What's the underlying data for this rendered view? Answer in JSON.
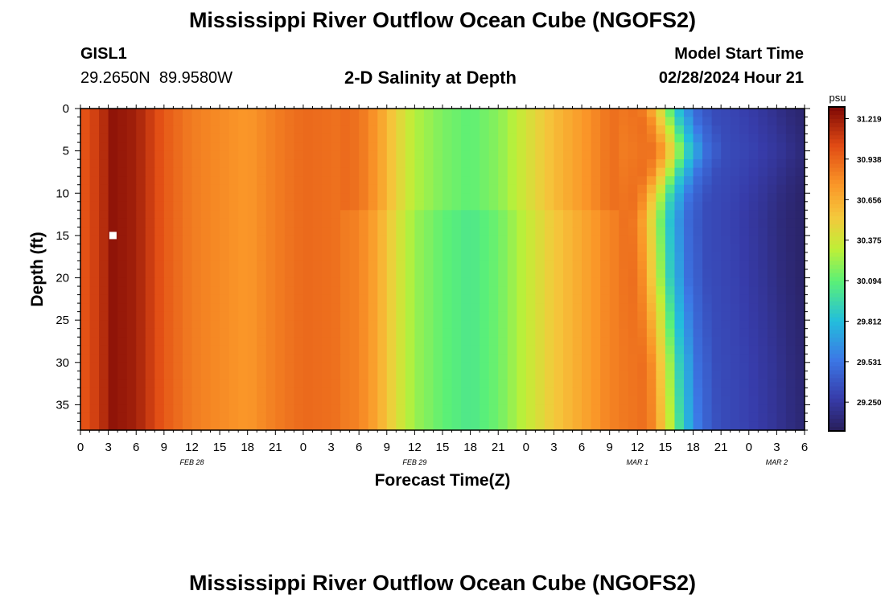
{
  "page": {
    "title": "Mississippi River Outflow Ocean Cube (NGOFS2)",
    "footer_title": "Mississippi River Outflow Ocean Cube (NGOFS2)"
  },
  "station": {
    "id": "GISL1",
    "coords": "29.2650N  89.9580W"
  },
  "model": {
    "start_label": "Model Start Time",
    "start_value": "02/28/2024 Hour 21"
  },
  "chart_data": {
    "type": "heatmap",
    "title": "2-D Salinity at Depth",
    "xlabel": "Forecast Time(Z)",
    "ylabel": "Depth (ft)",
    "x_tick_labels": [
      "0",
      "3",
      "6",
      "9",
      "12",
      "15",
      "18",
      "21",
      "0",
      "3",
      "6",
      "9",
      "12",
      "15",
      "18",
      "21",
      "0",
      "3",
      "6",
      "9",
      "12",
      "15",
      "18",
      "21",
      "0",
      "3",
      "6"
    ],
    "x_range_hours": [
      0,
      78
    ],
    "day_labels": [
      {
        "label": "FEB 28",
        "hour": 12
      },
      {
        "label": "FEB 29",
        "hour": 36
      },
      {
        "label": "MAR 1",
        "hour": 60
      },
      {
        "label": "MAR 2",
        "hour": 75
      }
    ],
    "y_ticks": [
      0,
      5,
      10,
      15,
      20,
      25,
      30,
      35
    ],
    "y_range": [
      0,
      38
    ],
    "y_inverted": true,
    "colorbar": {
      "unit": "psu",
      "ticks": [
        31.219,
        30.938,
        30.656,
        30.375,
        30.094,
        29.812,
        29.531,
        29.25
      ],
      "range": [
        29.05,
        31.3
      ]
    },
    "time_profile": [
      {
        "t": 0,
        "v": 30.98
      },
      {
        "t": 2,
        "v": 31.1
      },
      {
        "t": 3.5,
        "v": 31.25
      },
      {
        "t": 6,
        "v": 31.2
      },
      {
        "t": 9,
        "v": 30.98
      },
      {
        "t": 12,
        "v": 30.85
      },
      {
        "t": 15,
        "v": 30.8
      },
      {
        "t": 18,
        "v": 30.75
      },
      {
        "t": 21,
        "v": 30.85
      },
      {
        "t": 24,
        "v": 30.92
      },
      {
        "t": 27,
        "v": 30.9
      },
      {
        "t": 30,
        "v": 30.85
      },
      {
        "t": 32,
        "v": 30.7
      },
      {
        "t": 34,
        "v": 30.45
      },
      {
        "t": 36,
        "v": 30.25
      },
      {
        "t": 39,
        "v": 30.12
      },
      {
        "t": 42,
        "v": 30.05
      },
      {
        "t": 45,
        "v": 30.15
      },
      {
        "t": 48,
        "v": 30.35
      },
      {
        "t": 51,
        "v": 30.55
      },
      {
        "t": 54,
        "v": 30.7
      },
      {
        "t": 57,
        "v": 30.85
      },
      {
        "t": 60,
        "v": 30.9
      },
      {
        "t": 61,
        "v": 30.8
      },
      {
        "t": 62.5,
        "v": 30.4
      },
      {
        "t": 64,
        "v": 29.9
      },
      {
        "t": 66,
        "v": 29.5
      },
      {
        "t": 68,
        "v": 29.35
      },
      {
        "t": 71,
        "v": 29.3
      },
      {
        "t": 74,
        "v": 29.22
      },
      {
        "t": 76,
        "v": 29.15
      },
      {
        "t": 78,
        "v": 29.1
      }
    ],
    "front_offset_hours": [
      {
        "depth": 0,
        "dt": 0
      },
      {
        "depth": 5,
        "dt": 1.5
      },
      {
        "depth": 10,
        "dt": -0.3
      },
      {
        "depth": 13,
        "dt": -0.8
      },
      {
        "depth": 20,
        "dt": -0.5
      },
      {
        "depth": 30,
        "dt": 0.5
      },
      {
        "depth": 38,
        "dt": 0.8
      }
    ],
    "marker": {
      "t": 3.5,
      "depth": 15
    }
  }
}
